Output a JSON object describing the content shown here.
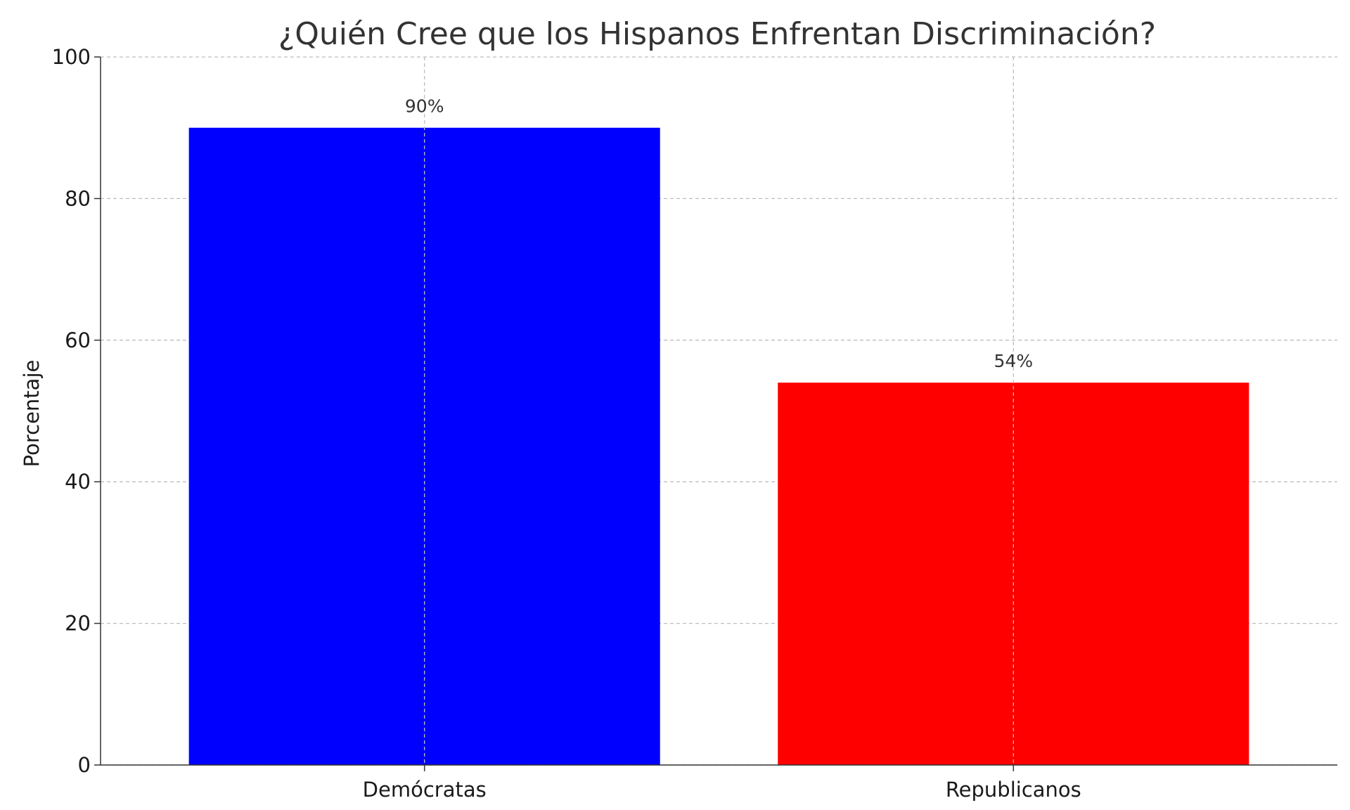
{
  "chart_data": {
    "type": "bar",
    "title": "¿Quién Cree que los Hispanos Enfrentan Discriminación?",
    "xlabel": "",
    "ylabel": "Porcentaje",
    "categories": [
      "Demócratas",
      "Republicanos"
    ],
    "values": [
      90,
      54
    ],
    "data_labels": [
      "90%",
      "54%"
    ],
    "colors": [
      "#0000ff",
      "#ff0000"
    ],
    "ylim": [
      0,
      100
    ],
    "yticks": [
      0,
      20,
      40,
      60,
      80,
      100
    ],
    "grid": true,
    "legend": "none"
  }
}
